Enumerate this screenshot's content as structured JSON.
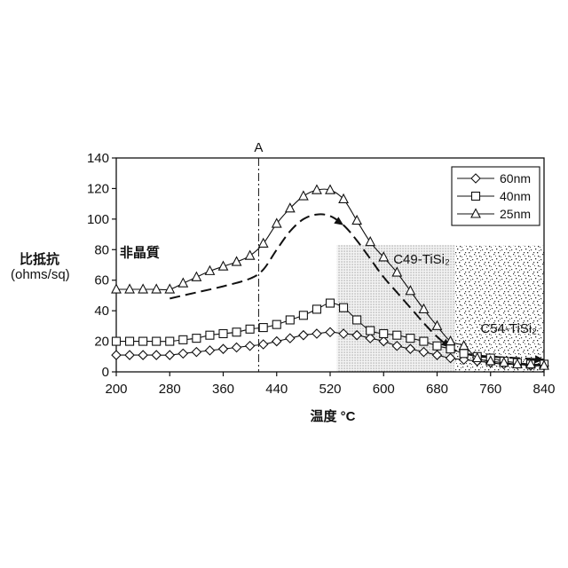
{
  "chart_data": {
    "type": "line",
    "xlabel": "温度 °C",
    "ylabel": [
      "比抵抗",
      "(ohms/sq)"
    ],
    "xlim": [
      200,
      840
    ],
    "ylim": [
      0,
      140
    ],
    "xticks": [
      200,
      280,
      360,
      440,
      520,
      600,
      680,
      760,
      840
    ],
    "yticks": [
      0,
      20,
      40,
      60,
      80,
      100,
      120,
      140
    ],
    "grid": false,
    "legend_position": "top-right",
    "series": [
      {
        "name": "60nm",
        "marker": "diamond",
        "x": [
          200,
          220,
          240,
          260,
          280,
          300,
          320,
          340,
          360,
          380,
          400,
          420,
          440,
          460,
          480,
          500,
          520,
          540,
          560,
          580,
          600,
          620,
          640,
          660,
          680,
          700,
          720,
          740,
          760,
          780,
          800,
          820,
          840
        ],
        "y": [
          11,
          11,
          11,
          11,
          11,
          12,
          13,
          14,
          15,
          16,
          17,
          18,
          20,
          22,
          24,
          25,
          26,
          25,
          24,
          22,
          20,
          17,
          15,
          13,
          11,
          9,
          8,
          7,
          6,
          5,
          5,
          4,
          4
        ]
      },
      {
        "name": "40nm",
        "marker": "square",
        "x": [
          200,
          220,
          240,
          260,
          280,
          300,
          320,
          340,
          360,
          380,
          400,
          420,
          440,
          460,
          480,
          500,
          520,
          540,
          560,
          580,
          600,
          620,
          640,
          660,
          680,
          700,
          720,
          740,
          760,
          780,
          800,
          820,
          840
        ],
        "y": [
          20,
          20,
          20,
          20,
          20,
          21,
          22,
          24,
          25,
          26,
          28,
          29,
          31,
          34,
          37,
          41,
          45,
          42,
          34,
          27,
          25,
          24,
          22,
          20,
          17,
          15,
          12,
          10,
          9,
          7,
          6,
          5,
          5
        ]
      },
      {
        "name": "25nm",
        "marker": "triangle",
        "x": [
          200,
          220,
          240,
          260,
          280,
          300,
          320,
          340,
          360,
          380,
          400,
          420,
          440,
          460,
          480,
          500,
          520,
          540,
          560,
          580,
          600,
          620,
          640,
          660,
          680,
          700,
          720,
          740,
          760,
          780,
          800,
          820,
          840
        ],
        "y": [
          54,
          54,
          54,
          54,
          54,
          58,
          62,
          66,
          69,
          72,
          76,
          84,
          97,
          107,
          115,
          119,
          119,
          113,
          99,
          85,
          75,
          65,
          53,
          41,
          30,
          20,
          17,
          9,
          7,
          6,
          5,
          5,
          4
        ]
      }
    ],
    "dashed_curve": {
      "x": [
        280,
        320,
        360,
        400,
        420,
        440,
        460,
        480,
        500,
        520,
        540,
        560,
        580,
        600,
        620,
        640,
        660,
        680,
        700,
        720,
        760,
        800,
        840
      ],
      "y": [
        48,
        52,
        56,
        61,
        67,
        80,
        92,
        100,
        103,
        102,
        96,
        86,
        74,
        62,
        52,
        42,
        32,
        23,
        16,
        12,
        10,
        9,
        8
      ]
    },
    "reference_line": {
      "label": "A",
      "x": 413
    },
    "regions": [
      {
        "label": "C49-TiSi₂",
        "x_from": 530,
        "x_to": 707,
        "y_from": 0,
        "y_to": 83
      },
      {
        "label": "C54-TiSi₂",
        "x_from": 707,
        "x_to": 840,
        "y_from": 0,
        "y_to": 83
      }
    ],
    "annotations": [
      {
        "text": "非晶質",
        "x": 235,
        "y": 78
      }
    ]
  }
}
